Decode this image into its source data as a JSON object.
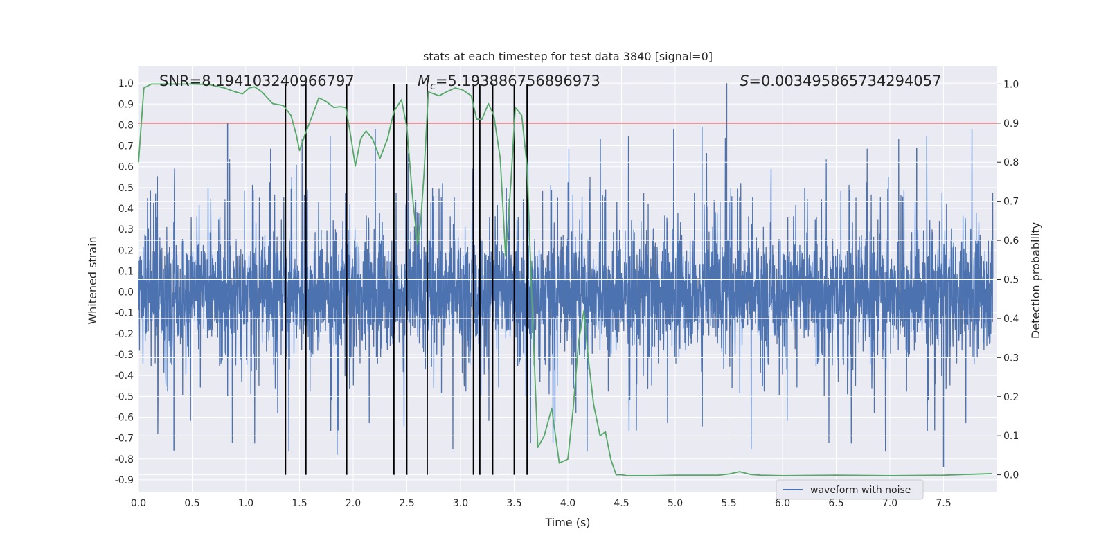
{
  "chart_data": {
    "type": "line",
    "title": "stats at each timestep for test data 3840 [signal=0]",
    "xlabel": "Time (s)",
    "ylabel_left": "Whitened strain",
    "ylabel_right": "Detection probability",
    "xlim": [
      0,
      8
    ],
    "ylim_left": [
      -0.96,
      1.08
    ],
    "ylim_right": [
      -0.045,
      1.045
    ],
    "x_ticks": [
      "0.0",
      "0.5",
      "1.0",
      "1.5",
      "2.0",
      "2.5",
      "3.0",
      "3.5",
      "4.0",
      "4.5",
      "5.0",
      "5.5",
      "6.0",
      "6.5",
      "7.0",
      "7.5"
    ],
    "y_ticks_left": [
      "1.0",
      "0.9",
      "0.8",
      "0.7",
      "0.6",
      "0.5",
      "0.4",
      "0.3",
      "0.2",
      "0.1",
      "0.0",
      "-0.1",
      "-0.2",
      "-0.3",
      "-0.4",
      "-0.5",
      "-0.6",
      "-0.7",
      "-0.8",
      "-0.9"
    ],
    "y_ticks_right": [
      "1.0",
      "0.9",
      "0.8",
      "0.7",
      "0.6",
      "0.5",
      "0.4",
      "0.3",
      "0.2",
      "0.1",
      "0.0"
    ],
    "annotations": {
      "snr": "SNR=8.194103240966797",
      "mc": "=5.193886756896973",
      "mc_symbol": "M",
      "mc_sub": "c",
      "s": "=0.003495865734294057",
      "s_symbol": "S"
    },
    "legend": {
      "label": "waveform with noise",
      "position": "lower-right"
    },
    "series": [
      {
        "name": "waveform with noise",
        "color": "#4c72b0",
        "axis": "left",
        "description": "dense whitened strain noise, core within about ±0.3, spikes up to ~1.0 and down to ~-0.76"
      },
      {
        "color": "#55a868",
        "axis": "right",
        "x": [
          0.0,
          0.05,
          0.12,
          0.25,
          0.5,
          0.65,
          0.8,
          0.9,
          0.97,
          1.03,
          1.08,
          1.15,
          1.25,
          1.35,
          1.42,
          1.47,
          1.5,
          1.55,
          1.62,
          1.68,
          1.75,
          1.82,
          1.88,
          1.93,
          1.97,
          2.02,
          2.07,
          2.12,
          2.18,
          2.25,
          2.32,
          2.38,
          2.45,
          2.5,
          2.55,
          2.6,
          2.63,
          2.66,
          2.7,
          2.75,
          2.8,
          2.87,
          2.95,
          3.02,
          3.1,
          3.15,
          3.2,
          3.26,
          3.31,
          3.37,
          3.42,
          3.47,
          3.51,
          3.57,
          3.62,
          3.67,
          3.72,
          3.78,
          3.85,
          3.92,
          4.0,
          4.05,
          4.1,
          4.15,
          4.19,
          4.24,
          4.3,
          4.35,
          4.4,
          4.45,
          4.5,
          4.55,
          4.6,
          4.8,
          5.0,
          5.2,
          5.4,
          5.5,
          5.6,
          5.7,
          5.8,
          6.0,
          6.5,
          7.0,
          7.5,
          7.95
        ],
        "values": [
          0.8,
          0.99,
          1.0,
          1.0,
          1.0,
          0.999,
          0.99,
          0.98,
          0.975,
          0.99,
          0.993,
          0.98,
          0.95,
          0.945,
          0.92,
          0.87,
          0.83,
          0.87,
          0.92,
          0.965,
          0.955,
          0.94,
          0.942,
          0.94,
          0.88,
          0.79,
          0.86,
          0.88,
          0.86,
          0.81,
          0.86,
          0.93,
          0.96,
          0.89,
          0.72,
          0.59,
          0.65,
          0.77,
          0.98,
          0.975,
          0.97,
          0.98,
          0.99,
          0.985,
          0.97,
          0.91,
          0.91,
          0.95,
          0.92,
          0.81,
          0.56,
          0.75,
          0.94,
          0.92,
          0.79,
          0.41,
          0.07,
          0.1,
          0.17,
          0.03,
          0.04,
          0.17,
          0.34,
          0.42,
          0.3,
          0.18,
          0.1,
          0.11,
          0.04,
          0.0,
          0.0,
          -0.002,
          -0.002,
          -0.002,
          -0.001,
          -0.001,
          -0.001,
          0.002,
          0.008,
          0.001,
          -0.001,
          -0.002,
          -0.001,
          -0.002,
          -0.001,
          0.003
        ]
      },
      {
        "name": "threshold",
        "color": "#c44e52",
        "axis": "right",
        "value": 0.9
      }
    ],
    "vertical_markers": [
      1.37,
      1.56,
      1.94,
      2.38,
      2.5,
      2.69,
      3.12,
      3.18,
      3.3,
      3.5,
      3.62
    ],
    "marker_range_right": [
      0.0,
      1.0
    ],
    "grid": true
  }
}
